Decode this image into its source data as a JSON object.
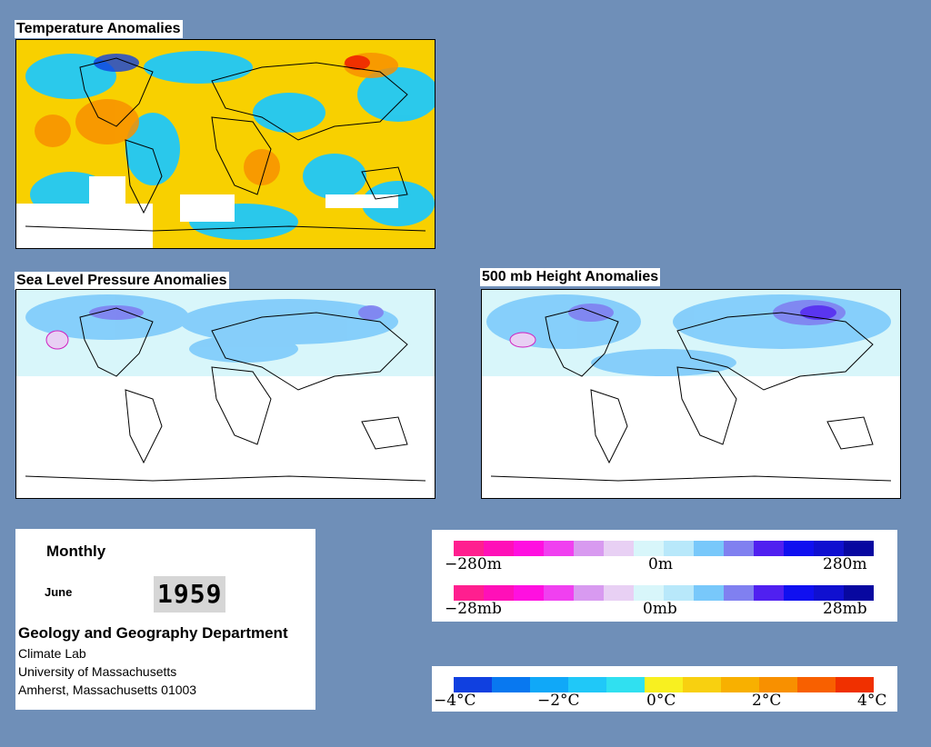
{
  "maps": {
    "temperature": {
      "title": "Temperature Anomalies"
    },
    "slp": {
      "title": "Sea Level Pressure Anomalies"
    },
    "height": {
      "title": "500 mb Height Anomalies"
    }
  },
  "info": {
    "frequency": "Monthly",
    "month": "June",
    "year": "1959",
    "department": "Geology and Geography Department",
    "lines": [
      "Climate Lab",
      "University of Massachusetts",
      "Amherst, Massachusetts 01003"
    ]
  },
  "legend_height": {
    "labels": [
      "−280m",
      "0m",
      "280m"
    ],
    "colors": [
      "#ff1f8f",
      "#ff10b8",
      "#ff10e0",
      "#f040f0",
      "#d89af0",
      "#e8d0f4",
      "#d8f6fa",
      "#b8e8fa",
      "#78c8fa",
      "#8080f0",
      "#5020f0",
      "#1010f0",
      "#1010d0",
      "#0808a0"
    ]
  },
  "legend_pressure": {
    "labels": [
      "−28mb",
      "0mb",
      "28mb"
    ],
    "colors": [
      "#ff1f8f",
      "#ff10b8",
      "#ff10e0",
      "#f040f0",
      "#d89af0",
      "#e8d0f4",
      "#d8f6fa",
      "#b8e8fa",
      "#78c8fa",
      "#8080f0",
      "#5020f0",
      "#1010f0",
      "#1010d0",
      "#0808a0"
    ]
  },
  "legend_temperature": {
    "labels": [
      "−4°C",
      "−2°C",
      "0°C",
      "2°C",
      "4°C"
    ],
    "colors": [
      "#1040e0",
      "#0878f0",
      "#10a8f8",
      "#20c8f8",
      "#30e0f0",
      "#f8f020",
      "#f8d010",
      "#f8b000",
      "#f89000",
      "#f86000",
      "#f03000"
    ]
  }
}
